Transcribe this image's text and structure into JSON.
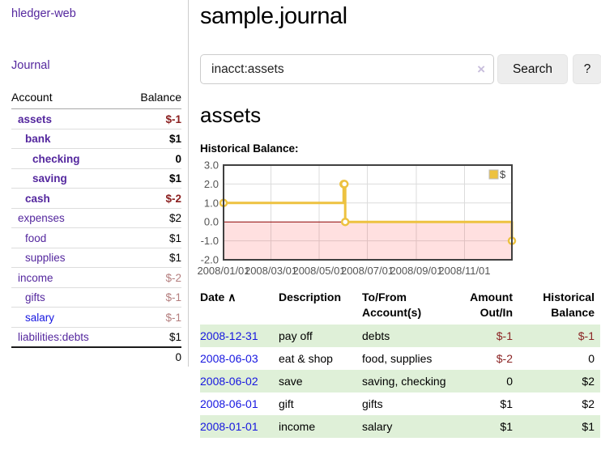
{
  "app": {
    "brand": "hledger-web",
    "nav_journal": "Journal"
  },
  "sidebar": {
    "columns": {
      "account": "Account",
      "balance": "Balance"
    },
    "accounts": [
      {
        "name": "assets",
        "indent": 1,
        "bold": true,
        "balance": "$-1",
        "balance_color": "negative"
      },
      {
        "name": "bank",
        "indent": 2,
        "bold": true,
        "balance": "$1",
        "balance_color": "normal"
      },
      {
        "name": "checking",
        "indent": 3,
        "bold": true,
        "balance": "0",
        "balance_color": "normal"
      },
      {
        "name": "saving",
        "indent": 3,
        "bold": true,
        "balance": "$1",
        "balance_color": "normal"
      },
      {
        "name": "cash",
        "indent": 2,
        "bold": true,
        "balance": "$-2",
        "balance_color": "negative"
      },
      {
        "name": "expenses",
        "indent": 1,
        "bold": false,
        "balance": "$2",
        "balance_color": "normal"
      },
      {
        "name": "food",
        "indent": 2,
        "bold": false,
        "balance": "$1",
        "balance_color": "normal"
      },
      {
        "name": "supplies",
        "indent": 2,
        "bold": false,
        "balance": "$1",
        "balance_color": "normal"
      },
      {
        "name": "income",
        "indent": 1,
        "bold": false,
        "balance": "$-2",
        "balance_color": "negative-light"
      },
      {
        "name": "gifts",
        "indent": 2,
        "bold": false,
        "balance": "$-1",
        "balance_color": "negative-light"
      },
      {
        "name": "salary",
        "indent": 2,
        "bold": false,
        "balance": "$-1",
        "balance_color": "negative-light",
        "link_color": "blue"
      },
      {
        "name": "liabilities:debts",
        "indent": 1,
        "bold": false,
        "balance": "$1",
        "balance_color": "normal"
      }
    ],
    "total": "0"
  },
  "header": {
    "title": "sample.journal"
  },
  "search": {
    "value": "inacct:assets",
    "clear_icon": "×",
    "button_label": "Search",
    "help_label": "?"
  },
  "account_page": {
    "heading": "assets",
    "chart_label": "Historical Balance:"
  },
  "chart_data": {
    "type": "line",
    "step": true,
    "title": "Historical Balance",
    "x_start": "2008/01/01",
    "x_end": "2008/12/31",
    "ylim": [
      -2,
      3
    ],
    "y_ticks": [
      "3.0",
      "2.0",
      "1.0",
      "0.0",
      "-1.0",
      "-2.0"
    ],
    "x_ticks": [
      "2008/01/01",
      "2008/03/01",
      "2008/05/01",
      "2008/07/01",
      "2008/09/01",
      "2008/11/01"
    ],
    "grid": true,
    "series": [
      {
        "name": "$",
        "color": "#edc240",
        "points": [
          [
            "2008/01/01",
            1
          ],
          [
            "2008/06/01",
            2
          ],
          [
            "2008/06/02",
            2
          ],
          [
            "2008/06/03",
            0
          ],
          [
            "2008/12/31",
            -1
          ]
        ]
      }
    ],
    "negative_fill": "rgba(255,0,0,0.12)",
    "zero_line_color": "#8b0000",
    "border_color": "#404040",
    "gridline_color": "#dcdcdc",
    "axis_label_color": "#545454",
    "legend": {
      "label": "$",
      "position": "top-right"
    }
  },
  "register": {
    "columns": {
      "date": "Date",
      "sort_indicator": "∧",
      "description": "Description",
      "accounts": "To/From Account(s)",
      "amount": "Amount Out/In",
      "balance": "Historical Balance"
    },
    "rows": [
      {
        "date": "2008-12-31",
        "description": "pay off",
        "accounts": "debts",
        "amount": "$-1",
        "amount_neg": true,
        "balance": "$-1",
        "balance_neg": true
      },
      {
        "date": "2008-06-03",
        "description": "eat & shop",
        "accounts": "food, supplies",
        "amount": "$-2",
        "amount_neg": true,
        "balance": "0",
        "balance_neg": false
      },
      {
        "date": "2008-06-02",
        "description": "save",
        "accounts": "saving, checking",
        "amount": "0",
        "amount_neg": false,
        "balance": "$2",
        "balance_neg": false
      },
      {
        "date": "2008-06-01",
        "description": "gift",
        "accounts": "gifts",
        "amount": "$1",
        "amount_neg": false,
        "balance": "$2",
        "balance_neg": false
      },
      {
        "date": "2008-01-01",
        "description": "income",
        "accounts": "salary",
        "amount": "$1",
        "amount_neg": false,
        "balance": "$1",
        "balance_neg": false
      }
    ]
  }
}
